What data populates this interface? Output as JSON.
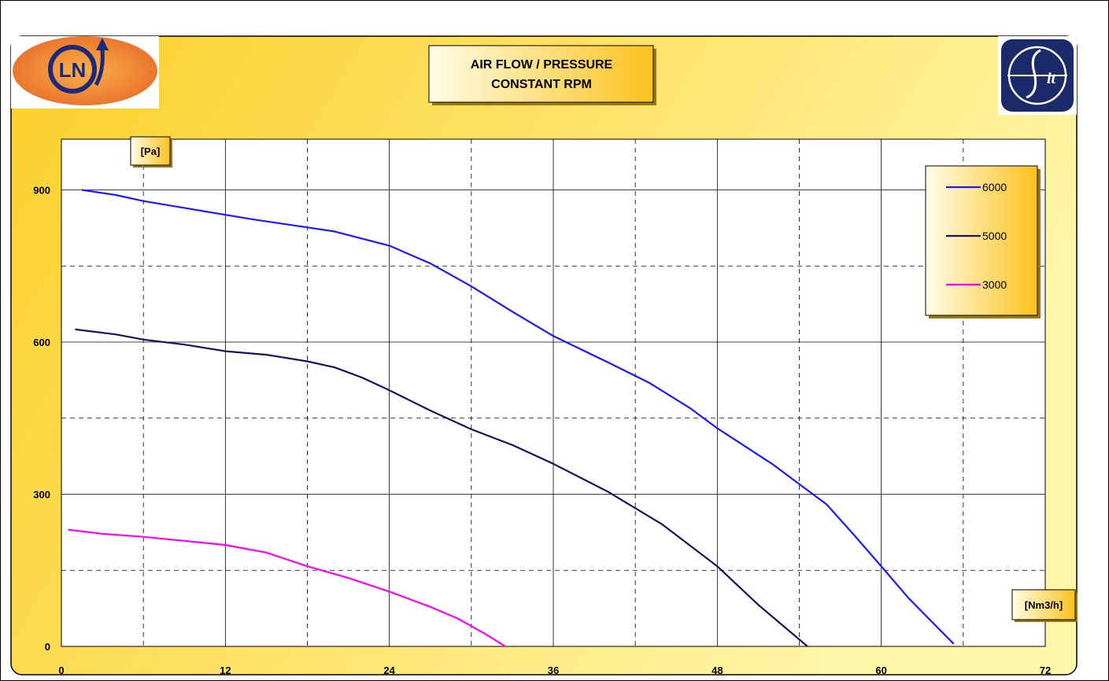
{
  "chart_data": {
    "type": "line",
    "title_lines": [
      "AIR FLOW / PRESSURE",
      "CONSTANT RPM"
    ],
    "xlabel": "[Nm3/h]",
    "ylabel": "[Pa]",
    "xlim": [
      0,
      72
    ],
    "ylim": [
      0,
      1000
    ],
    "x_ticks": [
      0,
      12,
      24,
      36,
      48,
      60,
      72
    ],
    "y_ticks": [
      0,
      300,
      600,
      900
    ],
    "grid": {
      "major_solid": true,
      "minor_dashed": true
    },
    "legend_position": "top-right",
    "series": [
      {
        "name": "6000",
        "color": "#1a1aff",
        "points": [
          [
            1.5,
            900
          ],
          [
            4,
            890
          ],
          [
            6,
            878
          ],
          [
            10,
            860
          ],
          [
            14,
            842
          ],
          [
            18,
            826
          ],
          [
            20,
            818
          ],
          [
            24,
            790
          ],
          [
            27,
            755
          ],
          [
            30,
            710
          ],
          [
            33,
            660
          ],
          [
            36,
            612
          ],
          [
            40,
            560
          ],
          [
            43,
            520
          ],
          [
            46,
            470
          ],
          [
            48,
            430
          ],
          [
            52,
            360
          ],
          [
            56,
            280
          ],
          [
            58,
            220
          ],
          [
            60,
            158
          ],
          [
            62,
            95
          ],
          [
            65.3,
            5
          ]
        ]
      },
      {
        "name": "5000",
        "color": "#14145a",
        "points": [
          [
            1,
            625
          ],
          [
            4,
            615
          ],
          [
            6,
            605
          ],
          [
            9,
            595
          ],
          [
            12,
            582
          ],
          [
            15,
            575
          ],
          [
            18,
            562
          ],
          [
            20,
            550
          ],
          [
            22,
            530
          ],
          [
            24,
            505
          ],
          [
            27,
            465
          ],
          [
            30,
            428
          ],
          [
            33,
            397
          ],
          [
            36,
            360
          ],
          [
            40,
            305
          ],
          [
            44,
            240
          ],
          [
            48,
            158
          ],
          [
            51,
            82
          ],
          [
            54.6,
            0
          ]
        ]
      },
      {
        "name": "3000",
        "color": "#ff00ff",
        "points": [
          [
            0.5,
            230
          ],
          [
            3,
            222
          ],
          [
            6,
            216
          ],
          [
            9,
            208
          ],
          [
            12,
            200
          ],
          [
            15,
            185
          ],
          [
            18,
            158
          ],
          [
            21,
            135
          ],
          [
            24,
            108
          ],
          [
            27,
            78
          ],
          [
            29,
            55
          ],
          [
            31,
            25
          ],
          [
            32.5,
            0
          ]
        ]
      }
    ]
  }
}
